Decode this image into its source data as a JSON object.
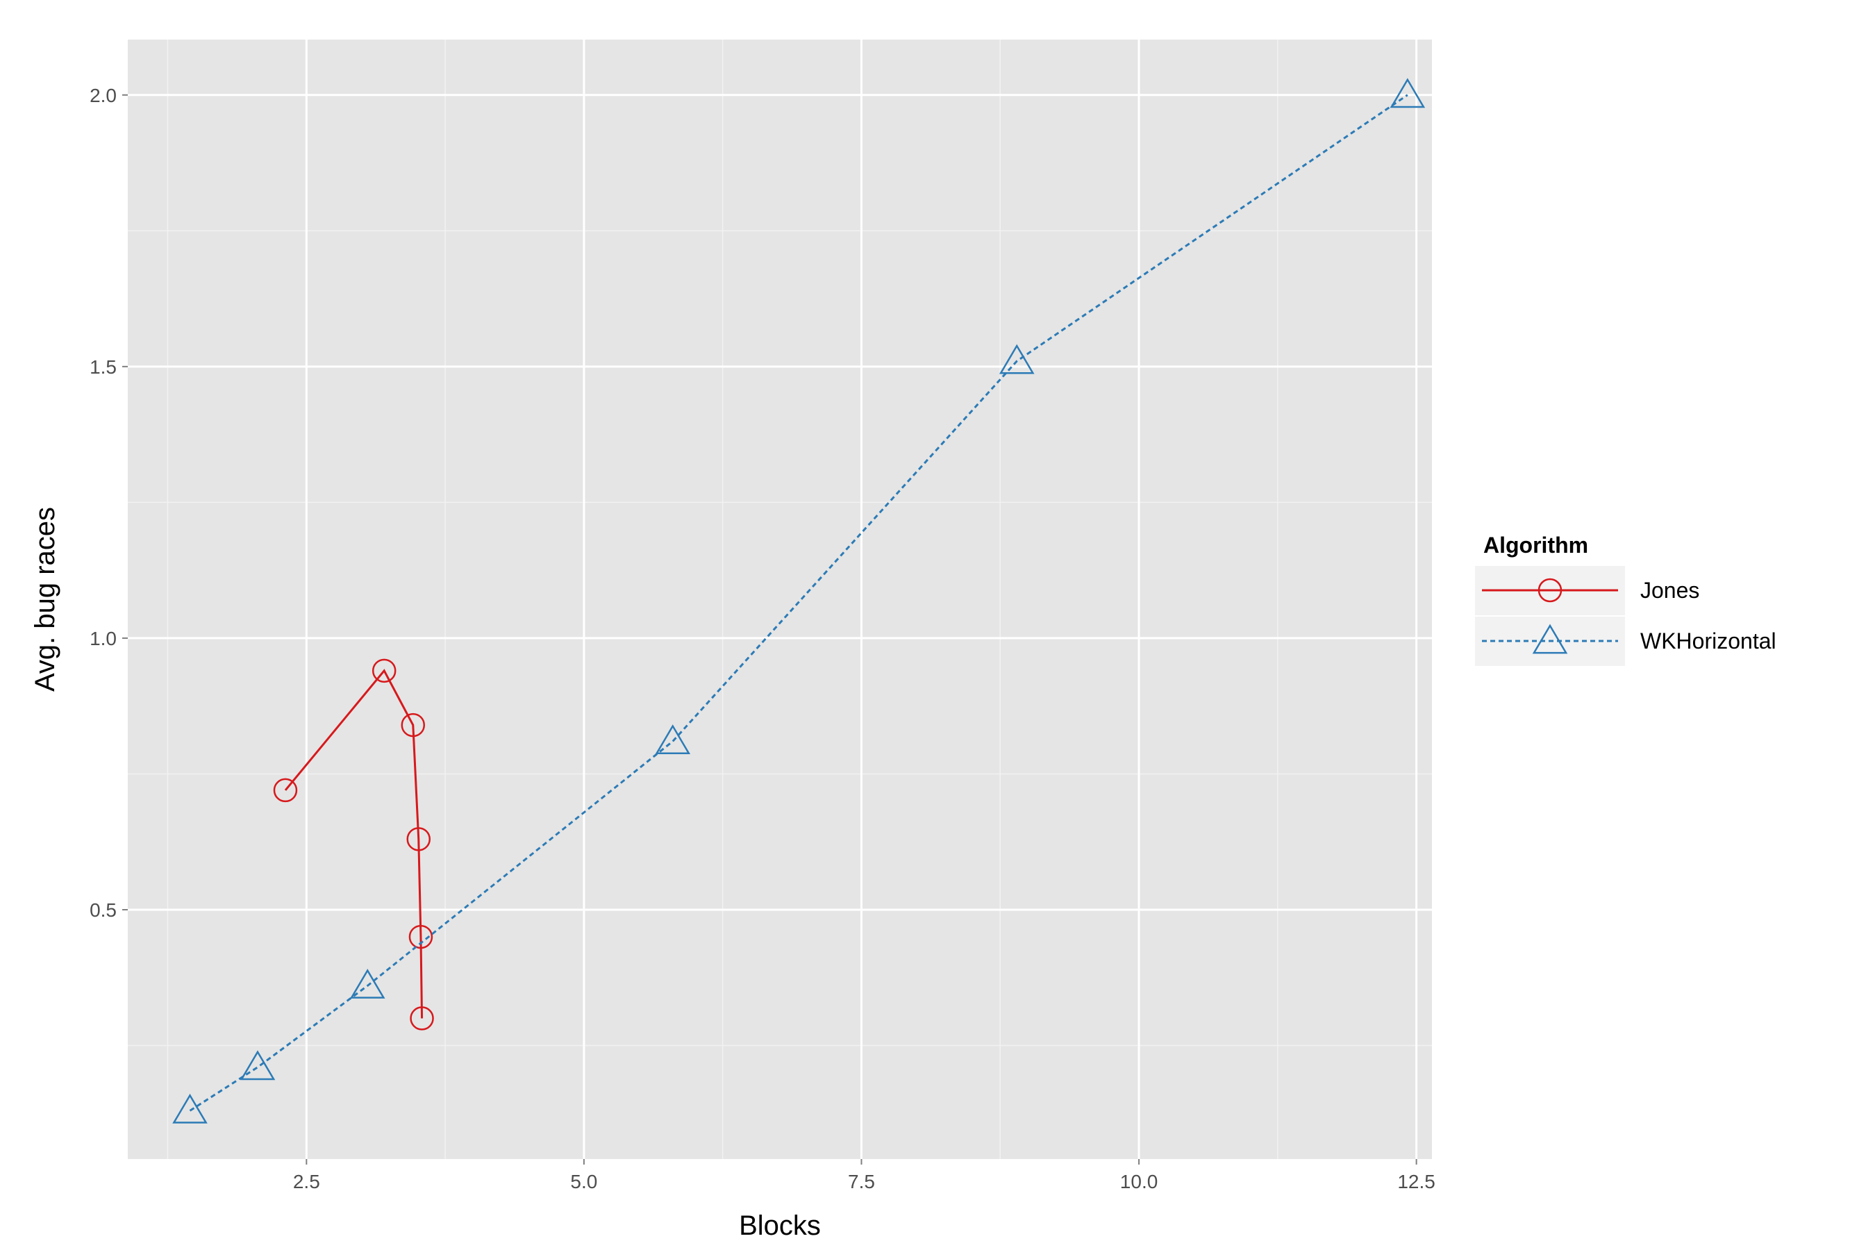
{
  "chart_data": {
    "type": "line",
    "xlabel": "Blocks",
    "ylabel": "Avg. bug races",
    "xlim": [
      0.89,
      12.64
    ],
    "ylim": [
      0.041,
      2.102
    ],
    "x_ticks": [
      2.5,
      5.0,
      7.5,
      10.0,
      12.5
    ],
    "x_tick_labels": [
      "2.5",
      "5.0",
      "7.5",
      "10.0",
      "12.5"
    ],
    "y_ticks": [
      0.5,
      1.0,
      1.5,
      2.0
    ],
    "y_tick_labels": [
      "0.5",
      "1.0",
      "1.5",
      "2.0"
    ],
    "grid": true,
    "legend": {
      "title": "Algorithm",
      "placement": "right"
    },
    "series": [
      {
        "name": "Jones",
        "color": "#d7191c",
        "marker": "circle",
        "line": "solid",
        "x": [
          2.31,
          3.2,
          3.46,
          3.51,
          3.53,
          3.54
        ],
        "y": [
          0.72,
          0.94,
          0.84,
          0.63,
          0.45,
          0.3
        ]
      },
      {
        "name": "WKHorizontal",
        "color": "#2c7bb6",
        "marker": "triangle",
        "line": "dashed",
        "x": [
          1.45,
          2.06,
          3.05,
          5.8,
          8.9,
          12.42
        ],
        "y": [
          0.13,
          0.21,
          0.36,
          0.81,
          1.51,
          2.0
        ]
      }
    ]
  }
}
